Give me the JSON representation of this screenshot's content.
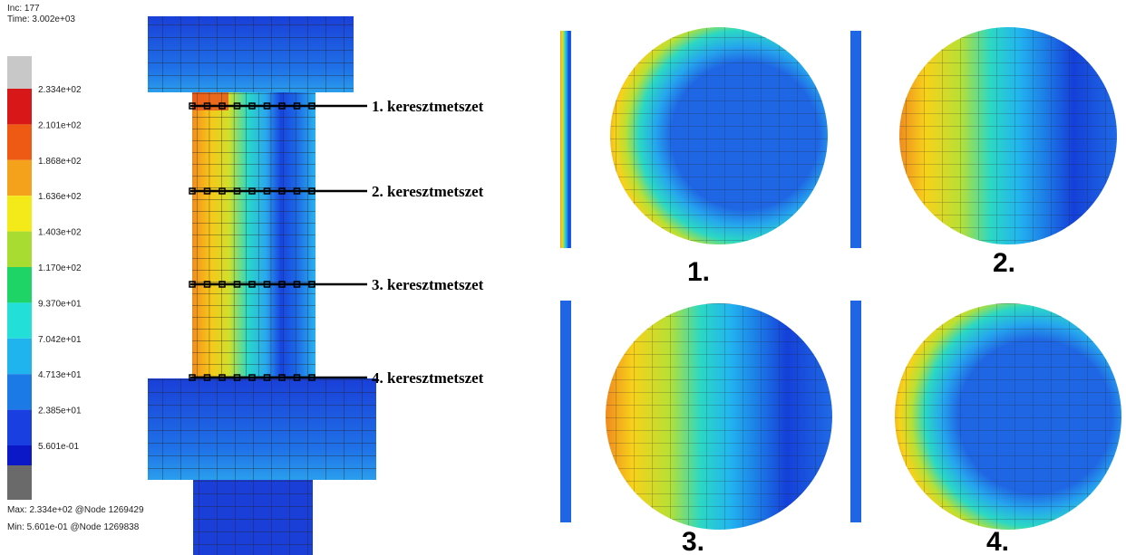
{
  "left_panel": {
    "inc": "Inc:  177",
    "time": "Time:  3.002e+03",
    "legend": [
      "2.334e+02",
      "2.101e+02",
      "1.868e+02",
      "1.636e+02",
      "1.403e+02",
      "1.170e+02",
      "9.370e+01",
      "7.042e+01",
      "4.713e+01",
      "2.385e+01",
      "5.601e-01"
    ],
    "max": "Max:  2.334e+02 @Node  1269429",
    "min": "Min:  5.601e-01 @Node  1269838",
    "sections": [
      "1. keresztmetszet",
      "2. keresztmetszet",
      "3. keresztmetszet",
      "4. keresztmetszet"
    ]
  },
  "right_panels": [
    "1.",
    "2.",
    "3.",
    "4."
  ]
}
